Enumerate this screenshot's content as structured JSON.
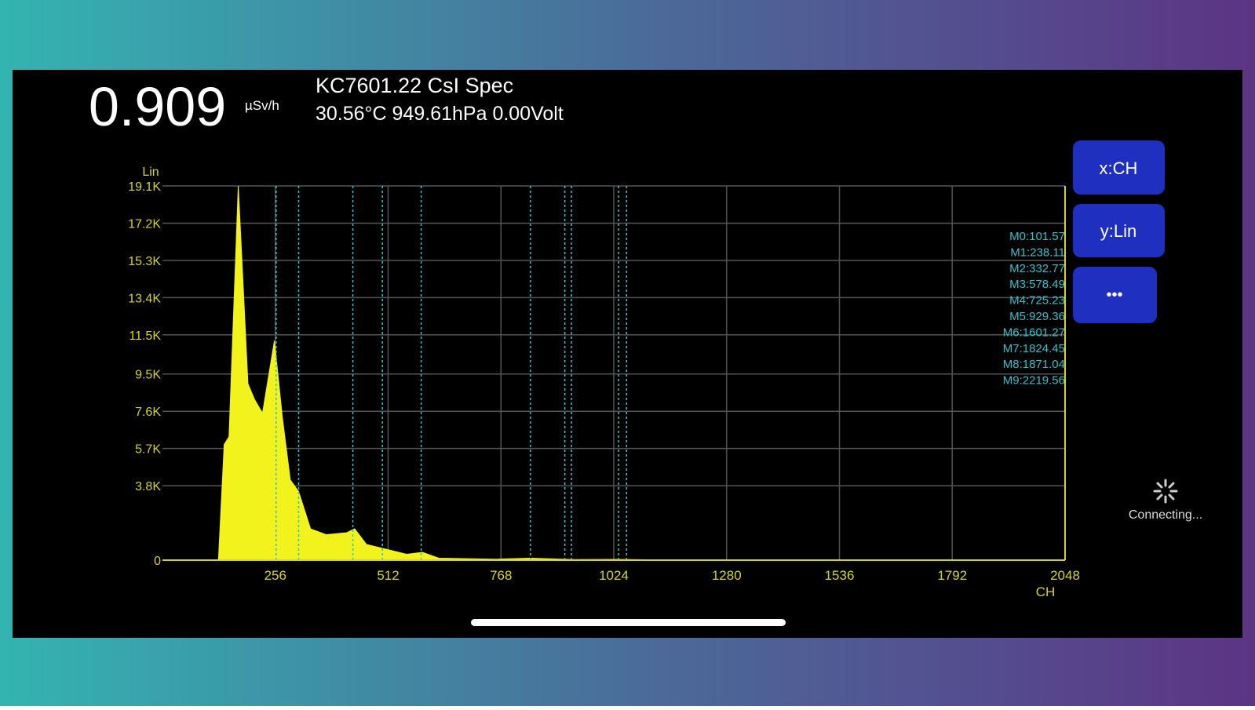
{
  "header": {
    "dose_rate": "0.909",
    "unit": "µSv/h",
    "device": "KC7601.22 CsI Spec",
    "status": "30.56°C 949.61hPa 0.00Volt"
  },
  "buttons": [
    "x:CH",
    "y:Lin",
    "•••"
  ],
  "connection": "Connecting...",
  "chart_data": {
    "type": "area",
    "x": [
      127,
      140,
      151,
      172,
      194,
      209,
      227,
      254,
      272,
      290,
      309,
      336,
      372,
      418,
      436,
      463,
      518,
      554,
      590,
      627,
      754,
      835,
      935,
      1026,
      1171
    ],
    "values": [
      0,
      5900,
      6300,
      19100,
      9000,
      8200,
      7500,
      11200,
      7300,
      4100,
      3500,
      1600,
      1300,
      1400,
      1600,
      800,
      500,
      300,
      400,
      100,
      50,
      100,
      30,
      40,
      0
    ],
    "color": "#f2f21c",
    "xlim": [
      0,
      2048
    ],
    "xticks": [
      256,
      512,
      768,
      1024,
      1280,
      1536,
      1792,
      2048
    ],
    "ylim": [
      0,
      19100
    ],
    "yticks": [
      0,
      {
        "value": 3800,
        "label": "3.8K"
      },
      {
        "value": 5700,
        "label": "5.7K"
      },
      {
        "value": 7600,
        "label": "7.6K"
      },
      {
        "value": 9500,
        "label": "9.5K"
      },
      {
        "value": 11500,
        "label": "11.5K"
      },
      {
        "value": 13400,
        "label": "13.4K"
      },
      {
        "value": 15300,
        "label": "15.3K"
      },
      {
        "value": 17200,
        "label": "17.2K"
      },
      {
        "value": 19100,
        "label": "19.1K"
      }
    ],
    "y_label": "Lin",
    "x_label": "CH",
    "grid": true,
    "markers": [
      {
        "label": "M0:101.57",
        "x": 258
      },
      {
        "label": "M1:238.11",
        "x": 309
      },
      {
        "label": "M2:332.77",
        "x": 432
      },
      {
        "label": "M3:578.49",
        "x": 499
      },
      {
        "label": "M4:725.23",
        "x": 587
      },
      {
        "label": "M5:929.36",
        "x": 835
      },
      {
        "label": "M6:1601.27",
        "x": 913
      },
      {
        "label": "M7:1824.45",
        "x": 928
      },
      {
        "label": "M8:1871.04",
        "x": 1035
      },
      {
        "label": "M9:2219.56",
        "x": 1053
      }
    ],
    "marker_color": "#2fc3cf"
  }
}
